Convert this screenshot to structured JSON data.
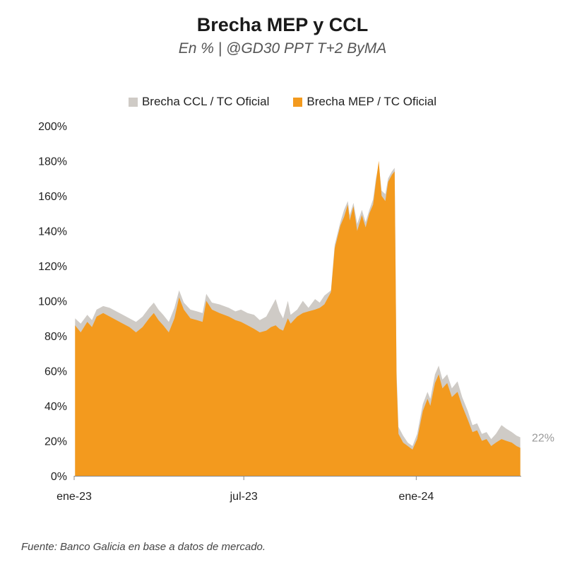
{
  "chart_data": {
    "type": "area",
    "title": "Brecha MEP y CCL",
    "subtitle": "En % | @GD30 PPT T+2 ByMA",
    "source": "Fuente: Banco Galicia en base a datos de mercado.",
    "yunit": "%",
    "ylim": [
      0,
      200
    ],
    "yticks": [
      0,
      20,
      40,
      60,
      80,
      100,
      120,
      140,
      160,
      180,
      200
    ],
    "ytick_labels": [
      "0%",
      "20%",
      "40%",
      "60%",
      "80%",
      "100%",
      "120%",
      "140%",
      "160%",
      "180%",
      "200%"
    ],
    "xlim": [
      "2023-01-01",
      "2024-04-22"
    ],
    "xticks": [
      {
        "date": "2023-01-01",
        "label": "ene-23"
      },
      {
        "date": "2023-07-01",
        "label": "jul-23"
      },
      {
        "date": "2024-01-01",
        "label": "ene-24"
      }
    ],
    "end_label": "22%",
    "grid": false,
    "legend_position": "top",
    "series": [
      {
        "name": "Brecha CCL / TC Oficial",
        "color": "#cfcbc6",
        "points": [
          [
            "2023-01-02",
            90
          ],
          [
            "2023-01-08",
            87
          ],
          [
            "2023-01-15",
            92
          ],
          [
            "2023-01-20",
            89
          ],
          [
            "2023-01-25",
            95
          ],
          [
            "2023-02-01",
            97
          ],
          [
            "2023-02-08",
            96
          ],
          [
            "2023-02-15",
            94
          ],
          [
            "2023-02-22",
            92
          ],
          [
            "2023-03-01",
            90
          ],
          [
            "2023-03-08",
            88
          ],
          [
            "2023-03-15",
            91
          ],
          [
            "2023-03-22",
            96
          ],
          [
            "2023-03-27",
            99
          ],
          [
            "2023-04-01",
            95
          ],
          [
            "2023-04-06",
            92
          ],
          [
            "2023-04-12",
            88
          ],
          [
            "2023-04-18",
            96
          ],
          [
            "2023-04-23",
            106
          ],
          [
            "2023-04-28",
            99
          ],
          [
            "2023-05-05",
            95
          ],
          [
            "2023-05-12",
            94
          ],
          [
            "2023-05-18",
            93
          ],
          [
            "2023-05-22",
            104
          ],
          [
            "2023-05-28",
            99
          ],
          [
            "2023-06-05",
            98
          ],
          [
            "2023-06-15",
            96
          ],
          [
            "2023-06-22",
            94
          ],
          [
            "2023-06-28",
            95
          ],
          [
            "2023-07-05",
            93
          ],
          [
            "2023-07-12",
            92
          ],
          [
            "2023-07-18",
            89
          ],
          [
            "2023-07-25",
            91
          ],
          [
            "2023-07-30",
            96
          ],
          [
            "2023-08-04",
            101
          ],
          [
            "2023-08-08",
            94
          ],
          [
            "2023-08-12",
            90
          ],
          [
            "2023-08-17",
            100
          ],
          [
            "2023-08-20",
            92
          ],
          [
            "2023-08-27",
            95
          ],
          [
            "2023-09-02",
            100
          ],
          [
            "2023-09-08",
            96
          ],
          [
            "2023-09-15",
            101
          ],
          [
            "2023-09-20",
            99
          ],
          [
            "2023-09-25",
            103
          ],
          [
            "2023-10-02",
            106
          ],
          [
            "2023-10-06",
            132
          ],
          [
            "2023-10-12",
            145
          ],
          [
            "2023-10-16",
            152
          ],
          [
            "2023-10-20",
            157
          ],
          [
            "2023-10-22",
            149
          ],
          [
            "2023-10-26",
            156
          ],
          [
            "2023-10-30",
            144
          ],
          [
            "2023-11-04",
            152
          ],
          [
            "2023-11-08",
            145
          ],
          [
            "2023-11-12",
            152
          ],
          [
            "2023-11-16",
            158
          ],
          [
            "2023-11-19",
            170
          ],
          [
            "2023-11-22",
            178
          ],
          [
            "2023-11-25",
            163
          ],
          [
            "2023-11-29",
            161
          ],
          [
            "2023-12-02",
            170
          ],
          [
            "2023-12-06",
            174
          ],
          [
            "2023-12-09",
            176
          ],
          [
            "2023-12-11",
            60
          ],
          [
            "2023-12-13",
            28
          ],
          [
            "2023-12-18",
            23
          ],
          [
            "2023-12-23",
            19
          ],
          [
            "2023-12-28",
            17
          ],
          [
            "2024-01-02",
            24
          ],
          [
            "2024-01-08",
            41
          ],
          [
            "2024-01-13",
            48
          ],
          [
            "2024-01-16",
            44
          ],
          [
            "2024-01-21",
            58
          ],
          [
            "2024-01-25",
            63
          ],
          [
            "2024-01-29",
            55
          ],
          [
            "2024-02-03",
            58
          ],
          [
            "2024-02-08",
            50
          ],
          [
            "2024-02-14",
            54
          ],
          [
            "2024-02-19",
            45
          ],
          [
            "2024-02-25",
            37
          ],
          [
            "2024-03-01",
            29
          ],
          [
            "2024-03-06",
            30
          ],
          [
            "2024-03-11",
            24
          ],
          [
            "2024-03-16",
            25
          ],
          [
            "2024-03-21",
            21
          ],
          [
            "2024-03-26",
            24
          ],
          [
            "2024-04-01",
            29
          ],
          [
            "2024-04-06",
            27
          ],
          [
            "2024-04-12",
            25
          ],
          [
            "2024-04-17",
            23
          ],
          [
            "2024-04-21",
            22
          ]
        ]
      },
      {
        "name": "Brecha MEP / TC Oficial",
        "color": "#f39a1e",
        "points": [
          [
            "2023-01-02",
            86
          ],
          [
            "2023-01-08",
            82
          ],
          [
            "2023-01-15",
            88
          ],
          [
            "2023-01-20",
            85
          ],
          [
            "2023-01-25",
            91
          ],
          [
            "2023-02-01",
            93
          ],
          [
            "2023-02-08",
            91
          ],
          [
            "2023-02-15",
            89
          ],
          [
            "2023-02-22",
            87
          ],
          [
            "2023-03-01",
            85
          ],
          [
            "2023-03-08",
            82
          ],
          [
            "2023-03-15",
            85
          ],
          [
            "2023-03-22",
            90
          ],
          [
            "2023-03-27",
            93
          ],
          [
            "2023-04-01",
            89
          ],
          [
            "2023-04-06",
            86
          ],
          [
            "2023-04-12",
            82
          ],
          [
            "2023-04-18",
            90
          ],
          [
            "2023-04-23",
            102
          ],
          [
            "2023-04-28",
            95
          ],
          [
            "2023-05-05",
            90
          ],
          [
            "2023-05-12",
            89
          ],
          [
            "2023-05-18",
            88
          ],
          [
            "2023-05-22",
            100
          ],
          [
            "2023-05-28",
            95
          ],
          [
            "2023-06-05",
            93
          ],
          [
            "2023-06-15",
            91
          ],
          [
            "2023-06-22",
            89
          ],
          [
            "2023-06-28",
            88
          ],
          [
            "2023-07-05",
            86
          ],
          [
            "2023-07-12",
            84
          ],
          [
            "2023-07-18",
            82
          ],
          [
            "2023-07-25",
            83
          ],
          [
            "2023-07-30",
            85
          ],
          [
            "2023-08-04",
            86
          ],
          [
            "2023-08-08",
            84
          ],
          [
            "2023-08-12",
            83
          ],
          [
            "2023-08-17",
            90
          ],
          [
            "2023-08-20",
            87
          ],
          [
            "2023-08-27",
            91
          ],
          [
            "2023-09-02",
            93
          ],
          [
            "2023-09-08",
            94
          ],
          [
            "2023-09-15",
            95
          ],
          [
            "2023-09-20",
            96
          ],
          [
            "2023-09-25",
            98
          ],
          [
            "2023-10-02",
            105
          ],
          [
            "2023-10-06",
            130
          ],
          [
            "2023-10-12",
            143
          ],
          [
            "2023-10-16",
            148
          ],
          [
            "2023-10-20",
            155
          ],
          [
            "2023-10-22",
            146
          ],
          [
            "2023-10-26",
            154
          ],
          [
            "2023-10-30",
            140
          ],
          [
            "2023-11-04",
            149
          ],
          [
            "2023-11-08",
            142
          ],
          [
            "2023-11-12",
            150
          ],
          [
            "2023-11-16",
            155
          ],
          [
            "2023-11-19",
            168
          ],
          [
            "2023-11-22",
            180
          ],
          [
            "2023-11-25",
            160
          ],
          [
            "2023-11-29",
            157
          ],
          [
            "2023-12-02",
            168
          ],
          [
            "2023-12-06",
            172
          ],
          [
            "2023-12-09",
            174
          ],
          [
            "2023-12-11",
            55
          ],
          [
            "2023-12-13",
            24
          ],
          [
            "2023-12-18",
            19
          ],
          [
            "2023-12-23",
            17
          ],
          [
            "2023-12-28",
            15
          ],
          [
            "2024-01-02",
            21
          ],
          [
            "2024-01-08",
            37
          ],
          [
            "2024-01-13",
            44
          ],
          [
            "2024-01-16",
            40
          ],
          [
            "2024-01-21",
            53
          ],
          [
            "2024-01-25",
            58
          ],
          [
            "2024-01-29",
            50
          ],
          [
            "2024-02-03",
            53
          ],
          [
            "2024-02-08",
            45
          ],
          [
            "2024-02-14",
            48
          ],
          [
            "2024-02-19",
            40
          ],
          [
            "2024-02-25",
            32
          ],
          [
            "2024-03-01",
            25
          ],
          [
            "2024-03-06",
            26
          ],
          [
            "2024-03-11",
            20
          ],
          [
            "2024-03-16",
            21
          ],
          [
            "2024-03-21",
            17
          ],
          [
            "2024-03-26",
            19
          ],
          [
            "2024-04-01",
            21
          ],
          [
            "2024-04-06",
            20
          ],
          [
            "2024-04-12",
            19
          ],
          [
            "2024-04-17",
            17
          ],
          [
            "2024-04-21",
            16
          ]
        ]
      }
    ]
  }
}
